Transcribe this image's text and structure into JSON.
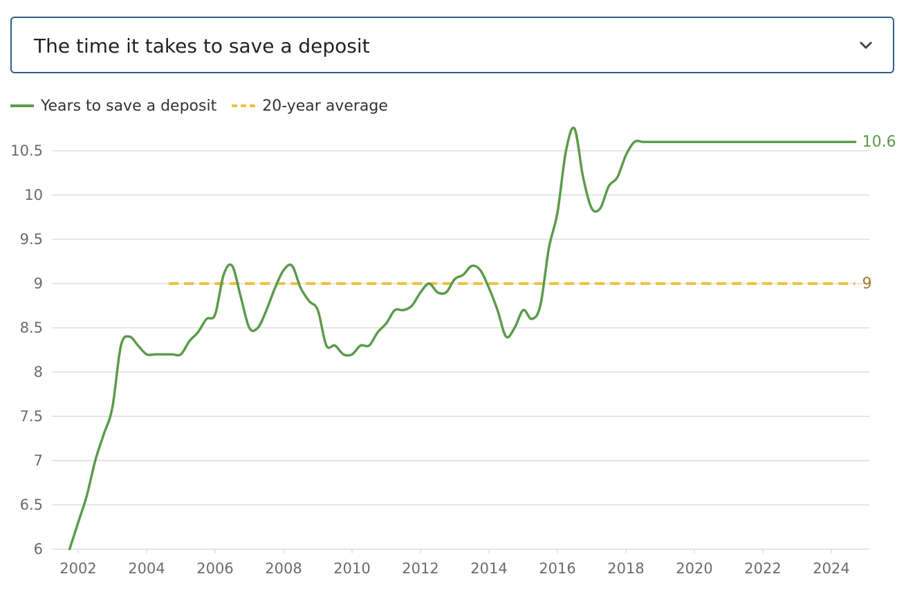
{
  "selector": {
    "label": "The time it takes to save a deposit"
  },
  "legend": {
    "series_label": "Years to save a deposit",
    "average_label": "20-year average"
  },
  "colors": {
    "series": "#5b9a4a",
    "average": "#efc13e",
    "average_label": "#a07a22",
    "grid": "#dddddd",
    "axis_text": "#6b6b6b",
    "selector_border": "#2f5e8e"
  },
  "chart_data": {
    "type": "line",
    "title": "",
    "xlabel": "",
    "ylabel": "",
    "xlim": [
      2001.65,
      2024.95
    ],
    "ylim": [
      6,
      10.95
    ],
    "x_ticks": [
      2002,
      2004,
      2006,
      2008,
      2010,
      2012,
      2014,
      2016,
      2018,
      2020,
      2022,
      2024
    ],
    "y_ticks": [
      6,
      6.5,
      7,
      7.5,
      8,
      8.5,
      9,
      9.5,
      10,
      10.5
    ],
    "y_tick_labels": [
      "6",
      "6.5",
      "7",
      "7.5",
      "8",
      "8.5",
      "9",
      "9.5",
      "10",
      "10.5"
    ],
    "grid": true,
    "legend_position": "top-left",
    "series": [
      {
        "name": "Years to save a deposit",
        "x": [
          2001.75,
          2002.0,
          2002.25,
          2002.5,
          2002.75,
          2003.0,
          2003.25,
          2003.5,
          2003.75,
          2004.0,
          2004.25,
          2004.5,
          2004.75,
          2005.0,
          2005.25,
          2005.5,
          2005.75,
          2006.0,
          2006.25,
          2006.5,
          2006.75,
          2007.0,
          2007.25,
          2007.5,
          2007.75,
          2008.0,
          2008.25,
          2008.5,
          2008.75,
          2009.0,
          2009.25,
          2009.5,
          2009.75,
          2010.0,
          2010.25,
          2010.5,
          2010.75,
          2011.0,
          2011.25,
          2011.5,
          2011.75,
          2012.0,
          2012.25,
          2012.5,
          2012.75,
          2013.0,
          2013.25,
          2013.5,
          2013.75,
          2014.0,
          2014.25,
          2014.5,
          2014.75,
          2015.0,
          2015.25,
          2015.5,
          2015.75,
          2016.0,
          2016.25,
          2016.5,
          2016.75,
          2017.0,
          2017.25,
          2017.5,
          2017.75,
          2018.0,
          2018.25,
          2018.5,
          2018.75,
          2019.0,
          2019.25,
          2019.5,
          2019.75,
          2020.0,
          2020.25,
          2020.5,
          2020.75,
          2021.0,
          2021.25,
          2021.5,
          2021.75,
          2022.0,
          2022.25,
          2022.5,
          2022.75,
          2023.0,
          2023.25,
          2023.5,
          2023.75,
          2024.0,
          2024.25,
          2024.5,
          2024.7
        ],
        "values": [
          6.0,
          6.3,
          6.6,
          7.0,
          7.3,
          7.6,
          8.3,
          8.4,
          8.3,
          8.2,
          8.2,
          8.2,
          8.2,
          8.2,
          8.35,
          8.45,
          8.6,
          8.65,
          9.1,
          9.2,
          8.85,
          8.5,
          8.5,
          8.7,
          8.95,
          9.15,
          9.2,
          8.95,
          8.8,
          8.7,
          8.3,
          8.3,
          8.2,
          8.2,
          8.3,
          8.3,
          8.45,
          8.55,
          8.7,
          8.7,
          8.75,
          8.9,
          9.0,
          8.9,
          8.9,
          9.05,
          9.1,
          9.2,
          9.15,
          8.95,
          8.7,
          8.4,
          8.5,
          8.7,
          8.6,
          8.75,
          9.4,
          9.8,
          10.5,
          10.75,
          10.2,
          9.85,
          9.85,
          10.1,
          10.2,
          10.45,
          10.6,
          10.6,
          10.6,
          10.6,
          10.6,
          10.6,
          10.6,
          10.6,
          10.6,
          10.6,
          10.6,
          10.6,
          10.6,
          10.6,
          10.6,
          10.6,
          10.6,
          10.6,
          10.6,
          10.6,
          10.6,
          10.6,
          10.6,
          10.6,
          10.6,
          10.6,
          10.6
        ]
      },
      {
        "name": "20-year average",
        "x": [
          2004.65,
          2024.7
        ],
        "values": [
          9,
          9
        ]
      }
    ],
    "annotations": [
      {
        "series": "Years to save a deposit",
        "x": 2024.7,
        "y": 10.6,
        "text": "10.6"
      },
      {
        "series": "20-year average",
        "x": 2024.7,
        "y": 9,
        "text": "9"
      }
    ]
  }
}
